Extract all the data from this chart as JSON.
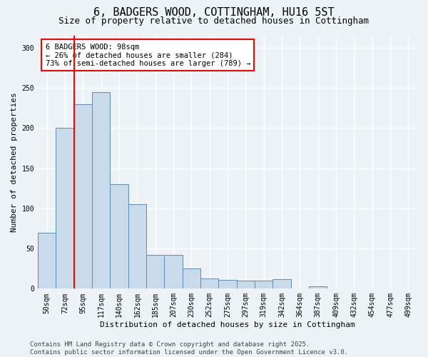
{
  "title_line1": "6, BADGERS WOOD, COTTINGHAM, HU16 5ST",
  "title_line2": "Size of property relative to detached houses in Cottingham",
  "xlabel": "Distribution of detached houses by size in Cottingham",
  "ylabel": "Number of detached properties",
  "categories": [
    "50sqm",
    "72sqm",
    "95sqm",
    "117sqm",
    "140sqm",
    "162sqm",
    "185sqm",
    "207sqm",
    "230sqm",
    "252sqm",
    "275sqm",
    "297sqm",
    "319sqm",
    "342sqm",
    "364sqm",
    "387sqm",
    "409sqm",
    "432sqm",
    "454sqm",
    "477sqm",
    "499sqm"
  ],
  "values": [
    70,
    200,
    230,
    245,
    130,
    105,
    42,
    42,
    25,
    13,
    11,
    10,
    10,
    12,
    0,
    3,
    0,
    0,
    0,
    0,
    0
  ],
  "bar_color": "#c9daea",
  "bar_edge_color": "#5b8db8",
  "annotation_text": "6 BADGERS WOOD: 98sqm\n← 26% of detached houses are smaller (284)\n73% of semi-detached houses are larger (789) →",
  "annotation_box_color": "white",
  "annotation_box_edge_color": "red",
  "property_line_color": "red",
  "ylim": [
    0,
    315
  ],
  "yticks": [
    0,
    50,
    100,
    150,
    200,
    250,
    300
  ],
  "footer_text": "Contains HM Land Registry data © Crown copyright and database right 2025.\nContains public sector information licensed under the Open Government Licence v3.0.",
  "bg_color": "#edf2f7",
  "grid_color": "white",
  "title_fontsize": 11,
  "subtitle_fontsize": 9,
  "axis_label_fontsize": 8,
  "tick_fontsize": 7,
  "annotation_fontsize": 7.5,
  "footer_fontsize": 6.5
}
